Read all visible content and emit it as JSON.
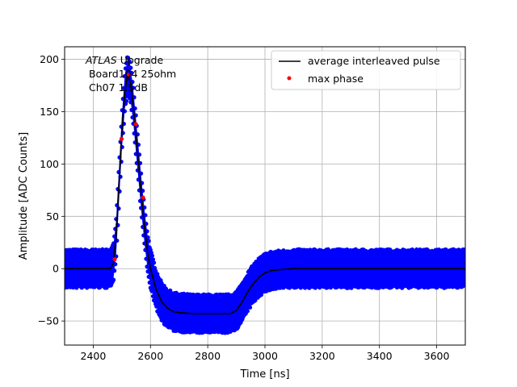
{
  "chart_data": {
    "type": "scatter",
    "xlabel": "Time [ns]",
    "ylabel": "Amplitude [ADC Counts]",
    "xlim": [
      2300,
      3700
    ],
    "ylim": [
      -73,
      212
    ],
    "xticks": [
      2400,
      2600,
      2800,
      3000,
      3200,
      3400,
      3600
    ],
    "yticks": [
      -50,
      0,
      50,
      100,
      150,
      200
    ],
    "grid": true,
    "legend_position": "top-right",
    "annotation": {
      "italic": "ATLAS",
      "rest": " Upgrade",
      "line2": " Board104 25ohm",
      "line3": " Ch07 1.5dB"
    },
    "series": [
      {
        "name": "",
        "kind": "scatter-band",
        "color": "#0000ff",
        "noise_halfwidth": 16,
        "x_range": [
          2300,
          3700
        ]
      },
      {
        "name": "average interleaved pulse",
        "kind": "line",
        "color": "#000000",
        "x": [
          2300,
          2460,
          2470,
          2480,
          2490,
          2500,
          2510,
          2520,
          2530,
          2540,
          2550,
          2560,
          2570,
          2580,
          2590,
          2600,
          2620,
          2640,
          2660,
          2680,
          2700,
          2750,
          2800,
          2850,
          2880,
          2900,
          2920,
          2940,
          2960,
          2980,
          3000,
          3020,
          3050,
          3100,
          3200,
          3700
        ],
        "y": [
          0,
          0,
          5,
          30,
          80,
          130,
          168,
          185,
          178,
          155,
          125,
          95,
          65,
          38,
          15,
          0,
          -20,
          -32,
          -38,
          -41,
          -42,
          -43,
          -43,
          -43,
          -43,
          -40,
          -32,
          -22,
          -14,
          -8,
          -4,
          -2,
          -1,
          0,
          0,
          0
        ]
      },
      {
        "name": "max phase",
        "kind": "scatter",
        "color": "#ff0000",
        "x": [
          2475,
          2499,
          2524,
          2549,
          2574
        ],
        "y": [
          9,
          124,
          185,
          138,
          68
        ]
      }
    ]
  }
}
